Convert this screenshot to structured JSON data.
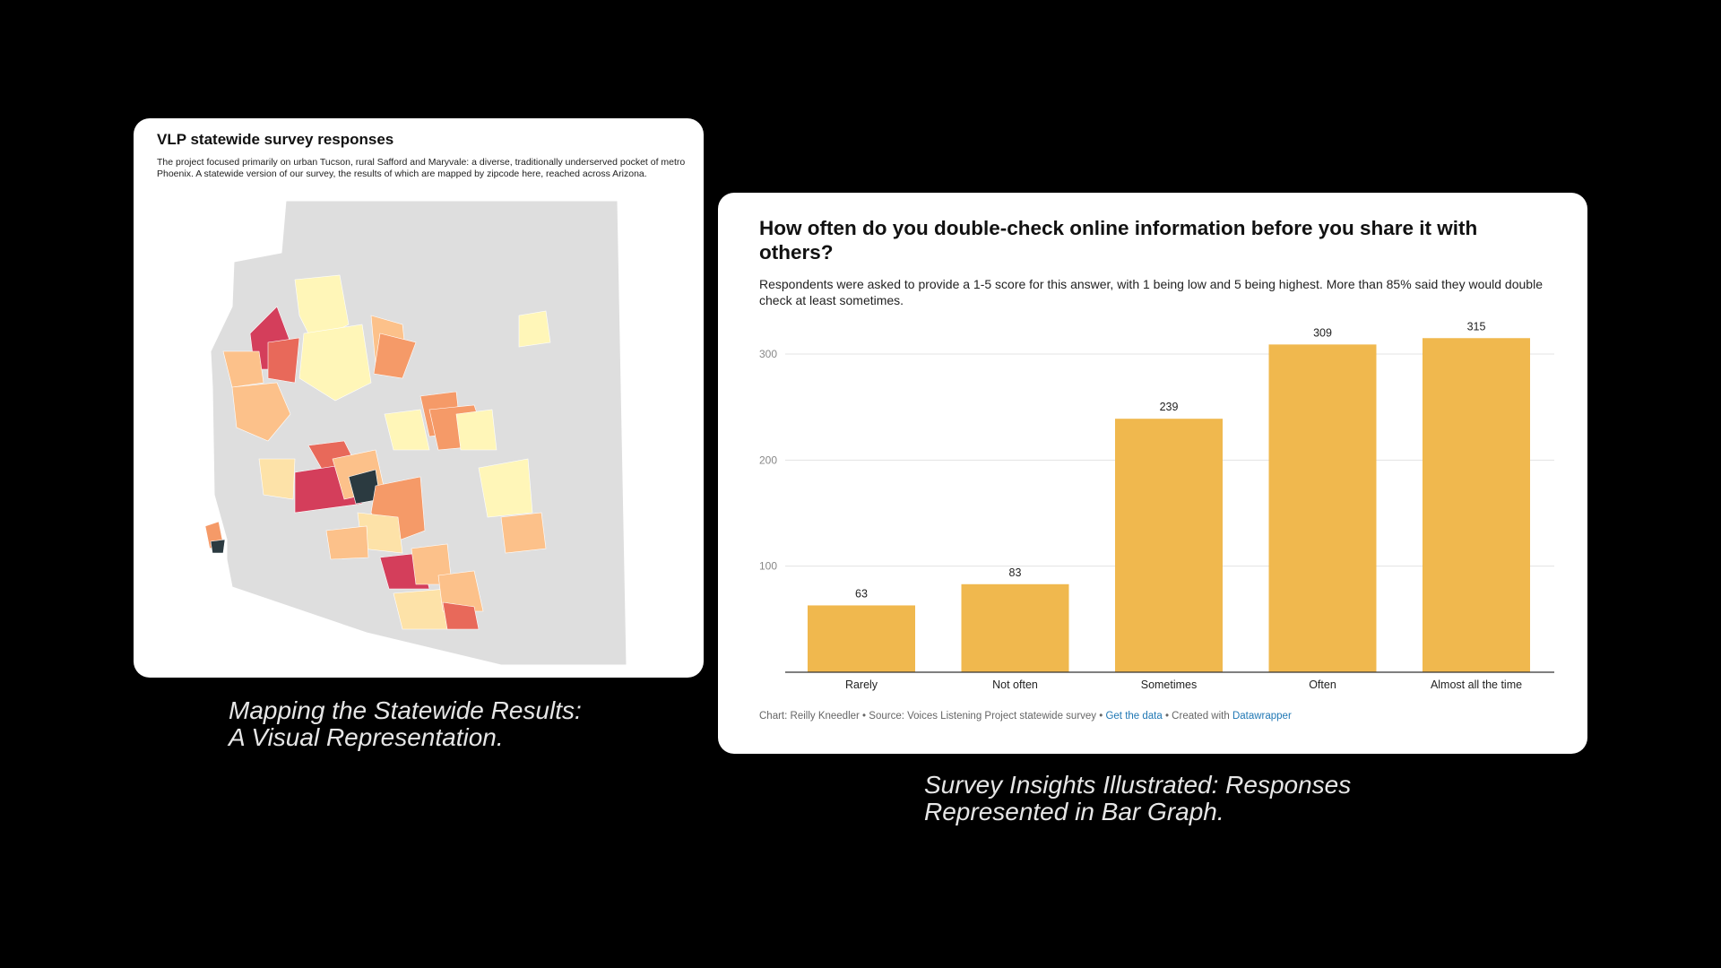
{
  "map_card": {
    "title": "VLP statewide survey responses",
    "description": "The project focused primarily on urban Tucson, rural Safford and Maryvale: a diverse, traditionally underserved pocket of metro Phoenix. A statewide version of our survey, the results of which are mapped by zipcode here, reached across Arizona.",
    "colors": {
      "none": "#dedede",
      "lightest": "#fff6b8",
      "light": "#fde2a8",
      "mid_light": "#fcc18a",
      "mid": "#f59a68",
      "strong": "#e8695a",
      "strongest": "#d43e5b",
      "darkest": "#2b3a40"
    }
  },
  "chart_card": {
    "title": "How often do you double-check online information before you share it with others?",
    "description": "Respondents were asked to provide a 1-5 score for this answer, with 1 being low and 5 being highest. More than 85% said they would double check at least sometimes.",
    "footer_prefix": "Chart: Reilly Kneedler • Source: Voices Listening Project statewide survey • ",
    "footer_link_data": "Get the data",
    "footer_mid": " • Created with ",
    "footer_link_tool": "Datawrapper",
    "bar_color": "#f0b84e"
  },
  "chart_data": {
    "type": "bar",
    "title": "How often do you double-check online information before you share it with others?",
    "categories": [
      "Rarely",
      "Not often",
      "Sometimes",
      "Often",
      "Almost all the time"
    ],
    "values": [
      63,
      83,
      239,
      309,
      315
    ],
    "yticks": [
      100,
      200,
      300
    ],
    "ylim": [
      0,
      300
    ],
    "grid": true,
    "xlabel": "",
    "ylabel": ""
  },
  "captions": {
    "left_line1": "Mapping the Statewide Results:",
    "left_line2": "A Visual Representation.",
    "right_line1": "Survey Insights Illustrated: Responses",
    "right_line2": "Represented in Bar Graph."
  }
}
